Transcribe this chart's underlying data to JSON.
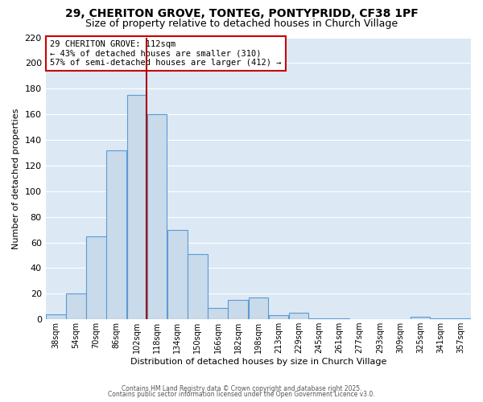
{
  "title1": "29, CHERITON GROVE, TONTEG, PONTYPRIDD, CF38 1PF",
  "title2": "Size of property relative to detached houses in Church Village",
  "xlabel": "Distribution of detached houses by size in Church Village",
  "ylabel": "Number of detached properties",
  "categories": [
    "38sqm",
    "54sqm",
    "70sqm",
    "86sqm",
    "102sqm",
    "118sqm",
    "134sqm",
    "150sqm",
    "166sqm",
    "182sqm",
    "198sqm",
    "213sqm",
    "229sqm",
    "245sqm",
    "261sqm",
    "277sqm",
    "293sqm",
    "309sqm",
    "325sqm",
    "341sqm",
    "357sqm"
  ],
  "bar_heights": [
    4,
    20,
    65,
    132,
    175,
    160,
    70,
    51,
    9,
    15,
    17,
    3,
    5,
    1,
    1,
    0,
    0,
    0,
    2,
    1,
    1
  ],
  "bar_color": "#c9daea",
  "bar_edge_color": "#5b9bd5",
  "bg_color": "#dce9f5",
  "grid_color": "#ffffff",
  "vline_idx": 5,
  "vline_color": "#aa0000",
  "annotation_text_line1": "29 CHERITON GROVE: 112sqm",
  "annotation_text_line2": "← 43% of detached houses are smaller (310)",
  "annotation_text_line3": "57% of semi-detached houses are larger (412) →",
  "ylim": [
    0,
    220
  ],
  "yticks": [
    0,
    20,
    40,
    60,
    80,
    100,
    120,
    140,
    160,
    180,
    200,
    220
  ],
  "footer1": "Contains HM Land Registry data © Crown copyright and database right 2025.",
  "footer2": "Contains public sector information licensed under the Open Government Licence v3.0.",
  "title1_fontsize": 10,
  "title2_fontsize": 9,
  "ylabel_fontsize": 8,
  "xlabel_fontsize": 8,
  "tick_fontsize": 7
}
